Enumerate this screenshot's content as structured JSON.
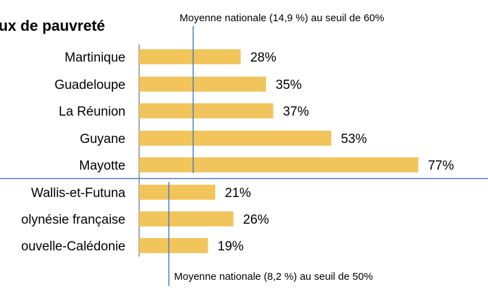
{
  "chart_data": {
    "type": "bar",
    "orientation": "horizontal",
    "title": "ux de pauvreté",
    "xlabel": "",
    "ylabel": "",
    "xlim": [
      0,
      80
    ],
    "grid": false,
    "legend": "none",
    "bar_color": "#F2C55C",
    "reference_line_color": "#4A7DB5",
    "groups": [
      {
        "categories": [
          "Martinique",
          "Guadeloupe",
          "La Réunion",
          "Guyane",
          "Mayotte"
        ],
        "values": [
          28,
          35,
          37,
          53,
          77
        ],
        "value_labels": [
          "28%",
          "35%",
          "37%",
          "53%",
          "77%"
        ],
        "reference": {
          "value": 14.9,
          "label": "Moyenne nationale (14,9 %) au seuil de 60%"
        }
      },
      {
        "categories": [
          "Wallis-et-Futuna",
          "olynésie française",
          "ouvelle-Calédonie"
        ],
        "values": [
          21,
          26,
          19
        ],
        "value_labels": [
          "21%",
          "26%",
          "19%"
        ],
        "reference": {
          "value": 8.2,
          "label": "Moyenne nationale (8,2 %) au seuil de 50%"
        }
      }
    ]
  }
}
